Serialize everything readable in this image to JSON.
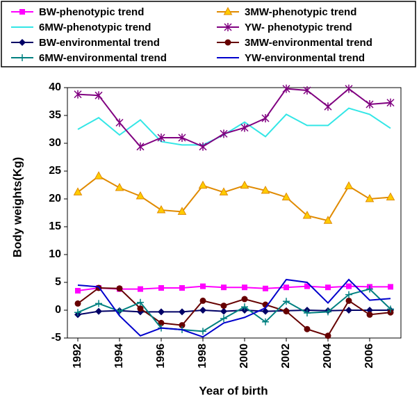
{
  "chart_data": {
    "type": "line",
    "x_label": "Year of birth",
    "y_label": "Body weights(Kg)",
    "x": [
      1992,
      1993,
      1994,
      1995,
      1996,
      1997,
      1998,
      1999,
      2000,
      2001,
      2002,
      2003,
      2004,
      2005,
      2006,
      2007
    ],
    "xlim": [
      1991.5,
      2007.5
    ],
    "xticks": [
      1992,
      1994,
      1996,
      1998,
      2000,
      2002,
      2004,
      2006
    ],
    "ylim": [
      -5,
      40
    ],
    "yticks": [
      -5,
      0,
      5,
      10,
      15,
      20,
      25,
      30,
      35,
      40
    ],
    "series": [
      {
        "name": "BW-phenotypic trend",
        "color": "#ff00ff",
        "marker": "square",
        "values": [
          3.5,
          4,
          3.8,
          3.8,
          4,
          4,
          4.3,
          4.1,
          4.1,
          3.9,
          4.1,
          4.3,
          4.1,
          4.3,
          4.2,
          4.2
        ]
      },
      {
        "name": "3MW-phenotypic trend",
        "color": "#e08a00",
        "marker": "triangle",
        "marker_fill": "#ffcc00",
        "values": [
          21.2,
          24.1,
          22,
          20.5,
          18,
          17.7,
          22.4,
          21.2,
          22.4,
          21.5,
          20.3,
          17,
          16.1,
          22.3,
          20,
          20.3
        ]
      },
      {
        "name": "6MW-phenotypic trend",
        "color": "#33e6e6",
        "marker": "none",
        "values": [
          32.5,
          34.6,
          31.5,
          34.2,
          30.3,
          29.7,
          29.7,
          31.5,
          33.8,
          31.2,
          35.2,
          33.2,
          33.2,
          36.3,
          35.2,
          32.7
        ]
      },
      {
        "name": "YW- phenotypic trend",
        "color": "#800080",
        "marker": "star",
        "values": [
          38.8,
          38.6,
          33.7,
          29.4,
          31,
          31,
          29.4,
          31.7,
          32.8,
          34.5,
          39.8,
          39.5,
          36.6,
          39.8,
          37,
          37.3
        ]
      },
      {
        "name": "BW-environmental trend",
        "color": "#000066",
        "marker": "diamond",
        "values": [
          -0.8,
          -0.2,
          -0.1,
          -0.3,
          -0.3,
          -0.3,
          0,
          -0.2,
          0,
          -0.2,
          -0.1,
          0,
          -0.1,
          0,
          0,
          0
        ]
      },
      {
        "name": "3MW-environmental trend",
        "color": "#660000",
        "marker": "circle",
        "values": [
          1.2,
          4,
          3.9,
          0.3,
          -2.3,
          -2.7,
          1.7,
          0.8,
          2,
          1,
          -0.2,
          -3.4,
          -4.6,
          1.7,
          -0.8,
          -0.4
        ]
      },
      {
        "name": "6MW-environmental trend",
        "color": "#008080",
        "marker": "plus",
        "values": [
          -0.4,
          1.2,
          -0.2,
          1.4,
          -3.2,
          -3.5,
          -3.8,
          -1.5,
          0.6,
          -2.1,
          1.6,
          -0.5,
          -0.3,
          2.8,
          3.8,
          0.2
        ]
      },
      {
        "name": "YW-environmental trend",
        "color": "#0000cc",
        "marker": "none",
        "values": [
          4.5,
          4.2,
          -1,
          -4.6,
          -3.2,
          -3.5,
          -4.8,
          -2.3,
          -1.3,
          0.4,
          5.5,
          5,
          1.3,
          5.5,
          1.8,
          2.1
        ]
      }
    ]
  }
}
